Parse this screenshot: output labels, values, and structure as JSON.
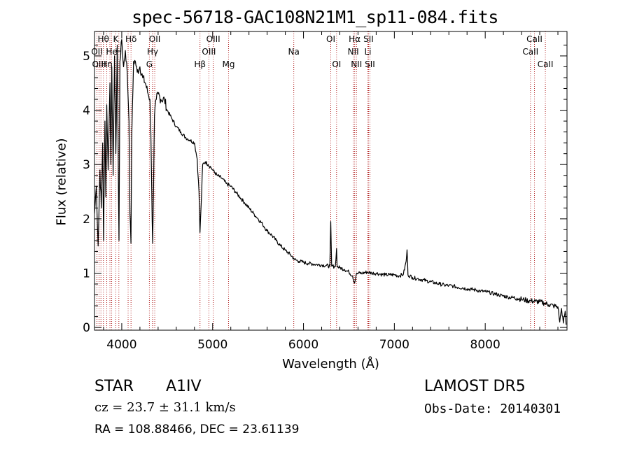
{
  "chart_data": {
    "type": "line",
    "title": "spec-56718-GAC108N21M1_sp11-084.fits",
    "xlabel": "Wavelength (Å)",
    "ylabel": "Flux (relative)",
    "xlim": [
      3700,
      8900
    ],
    "ylim": [
      -0.05,
      5.45
    ],
    "xticks": [
      4000,
      5000,
      6000,
      7000,
      8000
    ],
    "yticks": [
      0,
      1,
      2,
      3,
      4,
      5
    ],
    "series_color": "#000000",
    "line_color": "#b22222",
    "series": [
      {
        "x": [
          3700,
          3720,
          3740,
          3760,
          3775,
          3790,
          3800,
          3815,
          3825,
          3835,
          3850,
          3870,
          3880,
          3890,
          3905,
          3920,
          3935,
          3950,
          3965,
          3970,
          3980,
          4000,
          4020,
          4040,
          4060,
          4080,
          4090,
          4101,
          4110,
          4130,
          4150,
          4170,
          4200,
          4230,
          4260,
          4290,
          4310,
          4320,
          4330,
          4340,
          4350,
          4360,
          4380,
          4400,
          4430,
          4470,
          4500,
          4550,
          4600,
          4650,
          4700,
          4750,
          4800,
          4830,
          4850,
          4861,
          4875,
          4890,
          4920,
          4950,
          4980,
          5000,
          5050,
          5100,
          5150,
          5200,
          5250,
          5300,
          5350,
          5400,
          5450,
          5500,
          5550,
          5600,
          5650,
          5700,
          5750,
          5800,
          5850,
          5890,
          5900,
          5950,
          6000,
          6050,
          6100,
          6150,
          6200,
          6250,
          6290,
          6300,
          6310,
          6350,
          6364,
          6370,
          6400,
          6450,
          6500,
          6540,
          6563,
          6580,
          6600,
          6650,
          6700,
          6750,
          6800,
          6850,
          6900,
          6950,
          7000,
          7050,
          7100,
          7130,
          7140,
          7150,
          7200,
          7250,
          7300,
          7350,
          7400,
          7450,
          7500,
          7550,
          7600,
          7650,
          7700,
          7750,
          7800,
          7850,
          7900,
          7950,
          8000,
          8050,
          8100,
          8150,
          8200,
          8250,
          8300,
          8350,
          8400,
          8450,
          8500,
          8550,
          8600,
          8650,
          8700,
          8750,
          8800,
          8820,
          8840,
          8860,
          8880,
          8890
        ],
        "y": [
          2.1,
          2.6,
          1.5,
          2.9,
          2.2,
          3.4,
          1.6,
          3.8,
          2.4,
          4.1,
          2.9,
          4.5,
          3.0,
          4.8,
          2.8,
          5.0,
          3.2,
          5.2,
          2.3,
          1.6,
          4.9,
          5.3,
          4.8,
          5.1,
          4.7,
          3.8,
          2.1,
          1.55,
          3.5,
          4.9,
          4.9,
          4.7,
          4.8,
          4.6,
          4.5,
          4.3,
          4.2,
          3.6,
          2.5,
          1.55,
          2.6,
          3.9,
          4.2,
          4.3,
          4.2,
          4.2,
          4.0,
          3.85,
          3.7,
          3.6,
          3.5,
          3.45,
          3.4,
          3.1,
          2.5,
          1.75,
          2.3,
          3.0,
          3.05,
          3.0,
          2.95,
          2.9,
          2.8,
          2.75,
          2.65,
          2.6,
          2.5,
          2.4,
          2.3,
          2.2,
          2.1,
          2.0,
          1.9,
          1.78,
          1.7,
          1.6,
          1.5,
          1.42,
          1.35,
          1.28,
          1.25,
          1.22,
          1.2,
          1.18,
          1.17,
          1.16,
          1.15,
          1.14,
          1.13,
          1.95,
          1.13,
          1.12,
          1.45,
          1.12,
          1.1,
          1.07,
          1.02,
          0.95,
          0.82,
          0.97,
          1.0,
          1.0,
          1.02,
          1.0,
          1.0,
          0.98,
          0.97,
          0.97,
          0.97,
          0.95,
          0.98,
          1.22,
          1.43,
          0.97,
          0.92,
          0.9,
          0.88,
          0.86,
          0.84,
          0.82,
          0.8,
          0.78,
          0.77,
          0.76,
          0.74,
          0.73,
          0.71,
          0.7,
          0.69,
          0.67,
          0.66,
          0.64,
          0.62,
          0.6,
          0.58,
          0.56,
          0.55,
          0.54,
          0.52,
          0.5,
          0.49,
          0.48,
          0.47,
          0.45,
          0.42,
          0.4,
          0.38,
          0.1,
          0.35,
          0.08,
          0.3,
          0.05
        ]
      }
    ],
    "lines": [
      {
        "label": "Hθ",
        "x": 3798,
        "row": 0
      },
      {
        "label": "K",
        "x": 3934,
        "row": 0
      },
      {
        "label": "Hδ",
        "x": 4102,
        "row": 0
      },
      {
        "label": "OII",
        "x": 4363,
        "row": 0
      },
      {
        "label": "OIII",
        "x": 5007,
        "row": 0
      },
      {
        "label": "OI",
        "x": 6300,
        "row": 0
      },
      {
        "label": "Hα",
        "x": 6563,
        "row": 0
      },
      {
        "label": "SII",
        "x": 6716,
        "row": 0
      },
      {
        "label": "CaII",
        "x": 8542,
        "row": 0
      },
      {
        "label": "OII",
        "x": 3727,
        "row": 1
      },
      {
        "label": "He",
        "x": 3889,
        "row": 1
      },
      {
        "label": "H",
        "x": 3968,
        "row": 1
      },
      {
        "label": "Hγ",
        "x": 4340,
        "row": 1
      },
      {
        "label": "OIII",
        "x": 4959,
        "row": 1
      },
      {
        "label": "Na",
        "x": 5893,
        "row": 1
      },
      {
        "label": "NII",
        "x": 6548,
        "row": 1
      },
      {
        "label": "Li",
        "x": 6708,
        "row": 1
      },
      {
        "label": "CaII",
        "x": 8498,
        "row": 1
      },
      {
        "label": "OIII",
        "x": 3750,
        "row": 2
      },
      {
        "label": "Hη",
        "x": 3835,
        "row": 2
      },
      {
        "label": "G",
        "x": 4304,
        "row": 2
      },
      {
        "label": "Hβ",
        "x": 4861,
        "row": 2
      },
      {
        "label": "Mg",
        "x": 5175,
        "row": 2
      },
      {
        "label": "OI",
        "x": 6364,
        "row": 2
      },
      {
        "label": "NII",
        "x": 6583,
        "row": 2
      },
      {
        "label": "SII",
        "x": 6731,
        "row": 2
      },
      {
        "label": "CaII",
        "x": 8662,
        "row": 2
      }
    ],
    "extra_lines_x": [
      3771,
      3870,
      4070,
      4341
    ]
  },
  "info": {
    "class": "STAR",
    "subclass": "A1IV",
    "survey": "LAMOST DR5",
    "cz": "cz = 23.7 ± 31.1 km/s",
    "obsdate": "Obs-Date: 20140301",
    "radec": "RA = 108.88466, DEC =  23.61139"
  }
}
